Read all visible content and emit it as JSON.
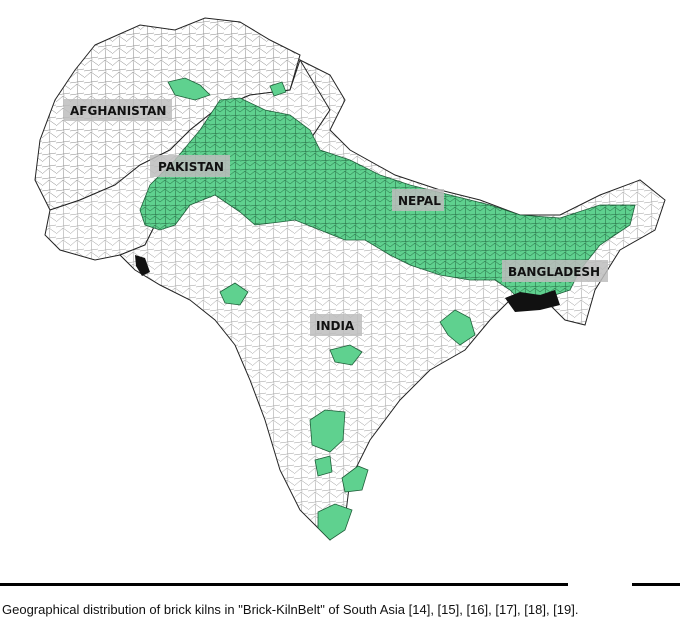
{
  "map": {
    "labels": {
      "afghanistan": "AFGHANISTAN",
      "pakistan": "PAKISTAN",
      "nepal": "NEPAL",
      "india": "INDIA",
      "bangladesh": "BANGLADESH"
    },
    "colors": {
      "kiln_belt": "#5fd18f",
      "border": "#222222",
      "background": "#ffffff",
      "label_box": "#bdbdbd"
    }
  },
  "caption": "Geographical distribution of brick kilns in \"Brick-KilnBelt\" of South Asia [14], [15], [16], [17], [18], [19]."
}
